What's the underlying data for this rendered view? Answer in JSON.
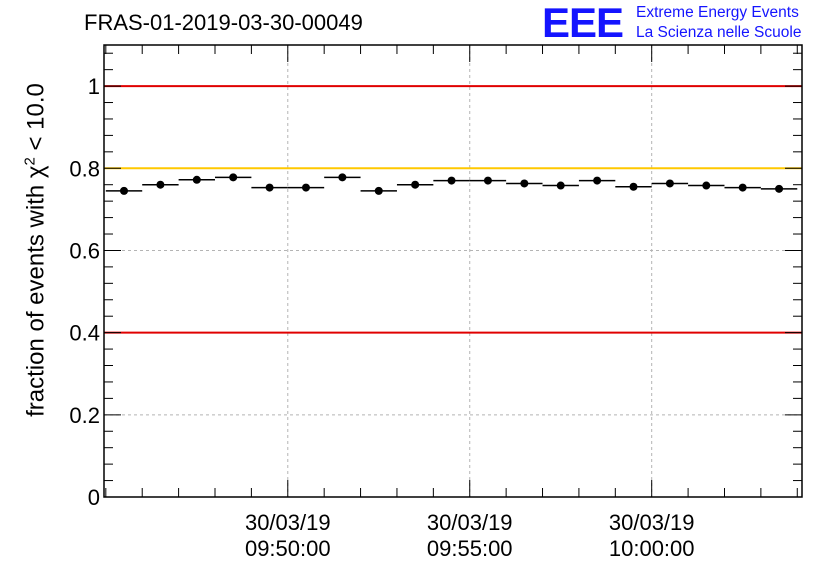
{
  "title": "FRAS-01-2019-03-30-00049",
  "logo": {
    "mark": "EEE",
    "line1": "Extreme Energy Events",
    "line2": "La Scienza nelle Scuole",
    "color": "#1414ff"
  },
  "chart_data": {
    "type": "scatter",
    "title": "FRAS-01-2019-03-30-00049",
    "xlabel": "",
    "ylabel_prefix": "fraction of events with ",
    "ylabel_symbol": "χ",
    "ylabel_exp": "2",
    "ylabel_suffix": " < 10.0",
    "ylim": [
      0,
      1.1
    ],
    "yticks": [
      0,
      0.2,
      0.4,
      0.6,
      0.8,
      1
    ],
    "ytick_labels": [
      "0",
      "0.2",
      "0.4",
      "0.6",
      "0.8",
      "1"
    ],
    "xlim_minutes": [
      -5.05,
      14.13
    ],
    "xticks_minutes": [
      0,
      5,
      10
    ],
    "xtick_labels": [
      {
        "date": "30/03/19",
        "time": "09:50:00"
      },
      {
        "date": "30/03/19",
        "time": "09:55:00"
      },
      {
        "date": "30/03/19",
        "time": "10:00:00"
      }
    ],
    "x_reference_time": "09:50:00",
    "bin_width_minutes": 1.0,
    "x_centers_minutes": [
      -4.5,
      -3.5,
      -2.5,
      -1.5,
      -0.5,
      0.5,
      1.5,
      2.5,
      3.5,
      4.5,
      5.5,
      6.5,
      7.5,
      8.5,
      9.5,
      10.5,
      11.5,
      12.5,
      13.5
    ],
    "values": [
      0.745,
      0.76,
      0.772,
      0.778,
      0.753,
      0.753,
      0.778,
      0.745,
      0.76,
      0.77,
      0.77,
      0.763,
      0.758,
      0.77,
      0.755,
      0.763,
      0.758,
      0.753,
      0.75
    ],
    "reference_lines": [
      {
        "y": 1.0,
        "color": "#e00000"
      },
      {
        "y": 0.8,
        "color": "#ffc800"
      },
      {
        "y": 0.4,
        "color": "#e00000"
      }
    ],
    "grid": true,
    "marker_color": "#000000"
  }
}
